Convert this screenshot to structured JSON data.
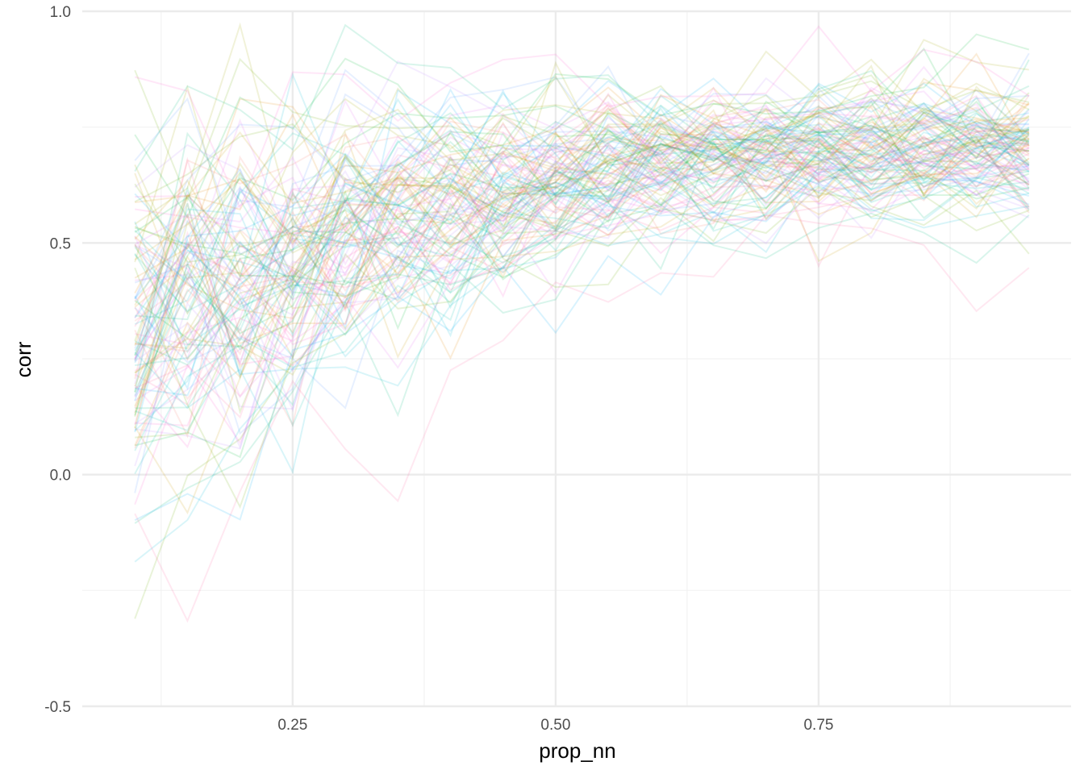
{
  "chart_data": {
    "type": "line",
    "title": "",
    "xlabel": "prop_nn",
    "ylabel": "corr",
    "xlim": [
      0.05,
      0.99
    ],
    "ylim": [
      -0.5,
      1.0
    ],
    "x_ticks": [
      0.25,
      0.5,
      0.75
    ],
    "x_tick_labels": [
      "0.25",
      "0.50",
      "0.75"
    ],
    "y_ticks": [
      -0.5,
      0.0,
      0.5,
      1.0
    ],
    "y_tick_labels": [
      "-0.5",
      "0.0",
      "0.5",
      "1.0"
    ],
    "x_minor_ticks": [
      0.125,
      0.375,
      0.625,
      0.875
    ],
    "y_minor_ticks": [
      -0.25,
      0.25,
      0.75
    ],
    "grid": true,
    "legend": "none",
    "line_opacity": 0.15,
    "series_count": 120,
    "x": [
      0.1,
      0.15,
      0.2,
      0.25,
      0.3,
      0.35,
      0.4,
      0.45,
      0.5,
      0.55,
      0.6,
      0.65,
      0.7,
      0.75,
      0.8,
      0.85,
      0.9,
      0.95
    ],
    "mean_by_x": [
      0.33,
      0.38,
      0.43,
      0.47,
      0.52,
      0.55,
      0.58,
      0.61,
      0.63,
      0.65,
      0.67,
      0.68,
      0.69,
      0.7,
      0.7,
      0.7,
      0.7,
      0.7
    ],
    "spread_by_x": [
      0.3,
      0.28,
      0.26,
      0.24,
      0.22,
      0.19,
      0.17,
      0.15,
      0.13,
      0.12,
      0.11,
      0.11,
      0.11,
      0.11,
      0.11,
      0.11,
      0.11,
      0.11
    ],
    "y_min_observed": -0.43,
    "y_max_observed": 0.97,
    "palette": [
      "#F8766D",
      "#E58700",
      "#C99800",
      "#A3A500",
      "#6BB100",
      "#00BA38",
      "#00BF7D",
      "#00C0AF",
      "#00BCD8",
      "#00B0F6",
      "#619CFF",
      "#B983FF",
      "#E76BF3",
      "#FD61D1",
      "#FF67A4"
    ],
    "colors": {
      "grid_major": "#ebebeb",
      "grid_minor": "#f2f2f2",
      "tick_text": "#4d4d4d",
      "title_text": "#000000"
    }
  }
}
